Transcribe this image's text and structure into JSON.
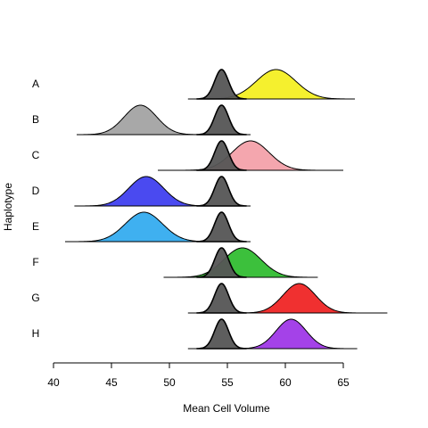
{
  "chart_data": {
    "type": "ridgeline",
    "xlabel": "Mean Cell Volume",
    "ylabel": "Haplotype",
    "xlim": [
      40,
      65
    ],
    "xticks": [
      40,
      45,
      50,
      55,
      60,
      65
    ],
    "grid": false,
    "reference": {
      "mean": 54.5,
      "sd": 0.6,
      "color": "#555555"
    },
    "rows": [
      {
        "label": "A",
        "mean": 59.2,
        "sd": 1.7,
        "color": "#f5f02e",
        "range": [
          51.6,
          66.0
        ]
      },
      {
        "label": "B",
        "mean": 47.5,
        "sd": 1.4,
        "color": "#a8a8a8",
        "range": [
          42.0,
          57.0
        ]
      },
      {
        "label": "C",
        "mean": 57.0,
        "sd": 1.6,
        "color": "#f4a6ae",
        "range": [
          49.0,
          65.0
        ]
      },
      {
        "label": "D",
        "mean": 48.0,
        "sd": 1.5,
        "color": "#4a4af0",
        "range": [
          41.8,
          57.0
        ]
      },
      {
        "label": "E",
        "mean": 47.8,
        "sd": 1.6,
        "color": "#3fb0f0",
        "range": [
          41.0,
          57.0
        ]
      },
      {
        "label": "F",
        "mean": 56.3,
        "sd": 1.6,
        "color": "#3cc03c",
        "range": [
          49.5,
          62.8
        ]
      },
      {
        "label": "G",
        "mean": 61.2,
        "sd": 1.4,
        "color": "#f03030",
        "range": [
          51.6,
          68.8
        ]
      },
      {
        "label": "H",
        "mean": 60.5,
        "sd": 1.3,
        "color": "#a442e8",
        "range": [
          51.6,
          66.2
        ]
      }
    ]
  }
}
